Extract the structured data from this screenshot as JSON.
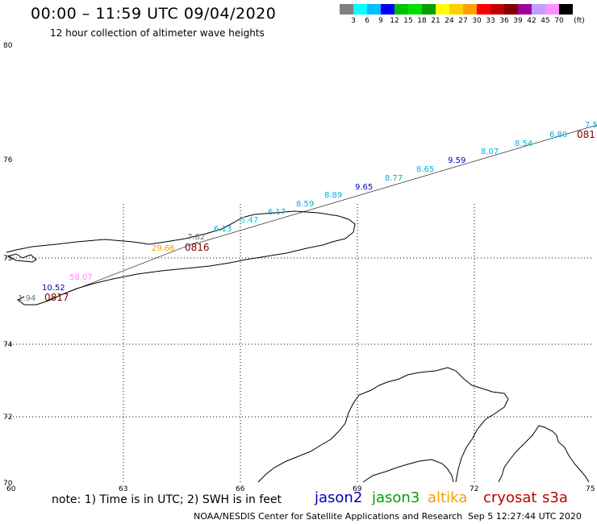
{
  "header": {
    "title": "00:00 – 11:59 UTC 09/04/2020",
    "subtitle": "12 hour collection of altimeter wave heights"
  },
  "legend": {
    "colors": [
      "#808080",
      "#00ffff",
      "#00c0ff",
      "#0000ff",
      "#00c000",
      "#00e000",
      "#00a000",
      "#ffff00",
      "#ffd000",
      "#ffa000",
      "#ff0000",
      "#c00000",
      "#800000",
      "#a000a0",
      "#c0a0ff",
      "#ff90ff",
      "#000000"
    ],
    "labels": [
      "3",
      "6",
      "9",
      "12",
      "15",
      "18",
      "21",
      "24",
      "27",
      "30",
      "33",
      "36",
      "39",
      "42",
      "45",
      "70",
      "(ft)"
    ]
  },
  "axes": {
    "lat_labels": [
      "80",
      "76",
      "75",
      "74",
      "72",
      "70"
    ],
    "lon_labels": [
      "60",
      "63",
      "66",
      "69",
      "72",
      "75"
    ]
  },
  "readings": [
    {
      "text": "7.5",
      "color": "#00b0e0"
    },
    {
      "text": "6.80",
      "color": "#00b0e0"
    },
    {
      "text": "8.54",
      "color": "#00b0e0"
    },
    {
      "text": "8.07",
      "color": "#00b0e0"
    },
    {
      "text": "9.59",
      "color": "#0000c0"
    },
    {
      "text": "8.65",
      "color": "#00b0e0"
    },
    {
      "text": "8.77",
      "color": "#00b0e0"
    },
    {
      "text": "9.65",
      "color": "#0000c0"
    },
    {
      "text": "8.89",
      "color": "#00b0e0"
    },
    {
      "text": "8.59",
      "color": "#00b0e0"
    },
    {
      "text": "6.17",
      "color": "#00b0e0"
    },
    {
      "text": "5.47",
      "color": "#00d0d0"
    },
    {
      "text": "6.13",
      "color": "#00b0e0"
    },
    {
      "text": "7.82",
      "color": "#707070"
    },
    {
      "text": "29.66",
      "color": "#f0a000"
    },
    {
      "text": "58.07",
      "color": "#ff80ff"
    },
    {
      "text": "10.52",
      "color": "#0000c0"
    },
    {
      "text": "1.94",
      "color": "#707070"
    }
  ],
  "times": [
    {
      "text": "0816",
      "color": "#800000"
    },
    {
      "text": "0817",
      "color": "#800000"
    },
    {
      "text": "081",
      "color": "#800000"
    }
  ],
  "footer": {
    "note": "note: 1) Time is in UTC; 2) SWH is in feet",
    "satellites": [
      {
        "name": "jason2",
        "color": "#0000c0"
      },
      {
        "name": "jason3",
        "color": "#00a000"
      },
      {
        "name": "altika",
        "color": "#f0a000"
      },
      {
        "name": "cryosat",
        "color": "#c00000"
      },
      {
        "name": "s3a",
        "color": "#c00000"
      }
    ],
    "credit": "NOAA/NESDIS Center for Satellite Applications and Research",
    "timestamp": "Sep  5 12:27:44 UTC 2020"
  }
}
